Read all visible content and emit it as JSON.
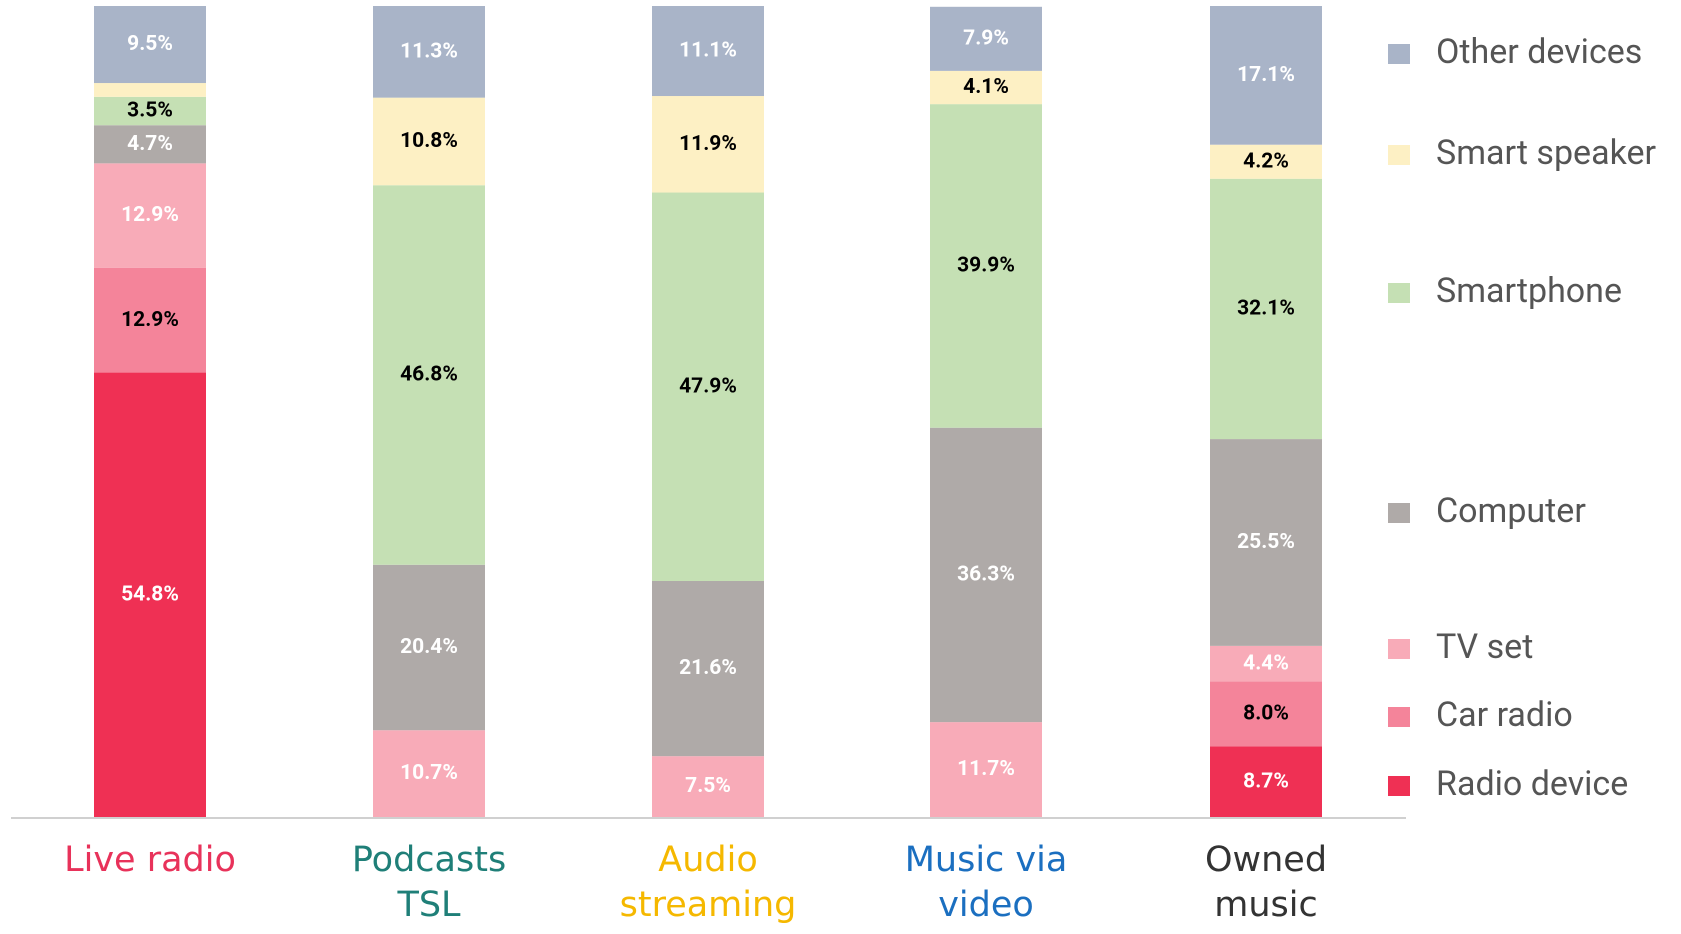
{
  "chart_data": {
    "type": "stacked_bar",
    "categories": [
      "Live radio",
      "Podcasts TSL",
      "Audio streaming",
      "Music via video",
      "Owned music"
    ],
    "category_colors": [
      "#e8325a",
      "#1f7f78",
      "#f5b800",
      "#1b6fc0",
      "#333333"
    ],
    "ylim": [
      0,
      100
    ],
    "series": [
      {
        "name": "Radio device",
        "color": "#ef3054",
        "label_color": "#ffffff",
        "values": [
          54.8,
          0,
          0,
          0,
          8.7
        ],
        "value_labels": [
          "54.8%",
          null,
          null,
          null,
          "8.7%"
        ]
      },
      {
        "name": "Car radio",
        "color": "#f4849a",
        "label_color": "#000000",
        "values": [
          12.9,
          0,
          0,
          0,
          8.0
        ],
        "value_labels": [
          "12.9%",
          null,
          null,
          null,
          "8.0%"
        ]
      },
      {
        "name": "TV set",
        "color": "#f8abb8",
        "label_color": "#ffffff",
        "values": [
          12.9,
          10.7,
          7.5,
          11.7,
          4.4
        ],
        "value_labels": [
          "12.9%",
          "10.7%",
          "7.5%",
          "11.7%",
          "4.4%"
        ]
      },
      {
        "name": "Computer",
        "color": "#afaaa8",
        "label_color": "#ffffff",
        "values": [
          4.7,
          20.4,
          21.6,
          36.3,
          25.5
        ],
        "value_labels": [
          "4.7%",
          "20.4%",
          "21.6%",
          "36.3%",
          "25.5%"
        ]
      },
      {
        "name": "Smartphone",
        "color": "#c5e0b4",
        "label_color": "#000000",
        "values": [
          3.5,
          46.8,
          47.9,
          39.9,
          32.1
        ],
        "value_labels": [
          "3.5%",
          "46.8%",
          "47.9%",
          "39.9%",
          "32.1%"
        ]
      },
      {
        "name": "Smart speaker",
        "color": "#fdf0c4",
        "label_color": "#000000",
        "values": [
          1.7,
          10.8,
          11.9,
          4.1,
          4.2
        ],
        "value_labels": [
          null,
          "10.8%",
          "11.9%",
          "4.1%",
          "4.2%"
        ]
      },
      {
        "name": "Other devices",
        "color": "#a9b4c8",
        "label_color": "#ffffff",
        "values": [
          9.5,
          11.3,
          11.1,
          7.9,
          17.1
        ],
        "value_labels": [
          "9.5%",
          "11.3%",
          "11.1%",
          "7.9%",
          "17.1%"
        ]
      }
    ]
  }
}
